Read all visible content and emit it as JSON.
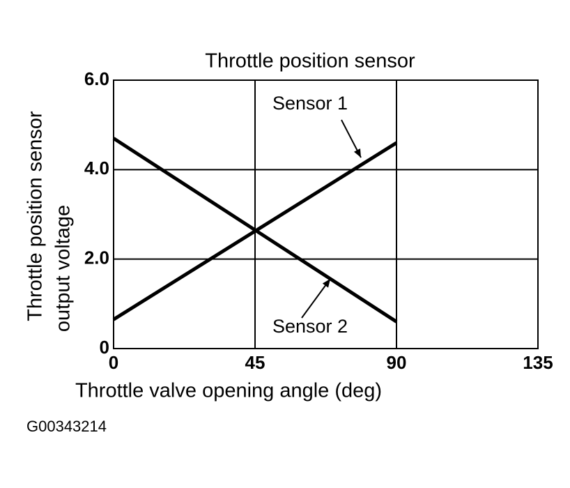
{
  "chart_data": {
    "type": "line",
    "title": "Throttle position sensor",
    "xlabel": "Throttle valve opening angle (deg)",
    "ylabel": [
      "Throttle position sensor",
      "output voltage"
    ],
    "x": [
      0,
      90
    ],
    "series": [
      {
        "name": "Sensor 1",
        "color": "#000000",
        "values": [
          0.65,
          4.6
        ]
      },
      {
        "name": "Sensor 2",
        "color": "#000000",
        "values": [
          4.7,
          0.6
        ]
      }
    ],
    "xlim": [
      0,
      135
    ],
    "xticks": [
      0,
      45,
      90,
      135
    ],
    "ylim": [
      0,
      6
    ],
    "yticks": [
      0,
      {
        "value": 2,
        "label": "2.0"
      },
      {
        "value": 4,
        "label": "4.0"
      },
      {
        "value": 6,
        "label": "6.0"
      }
    ],
    "grid": true
  },
  "footer": "G00343214"
}
